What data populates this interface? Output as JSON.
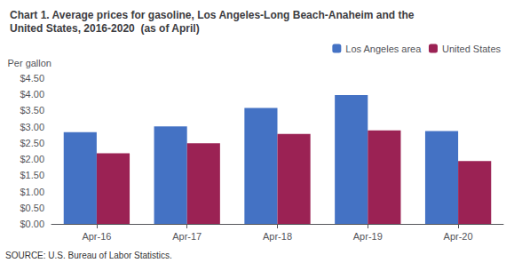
{
  "chart_data": {
    "type": "bar",
    "title": "Chart 1. Average prices for gasoline, Los Angeles-Long Beach-Anaheim and the\nUnited States, 2016-2020  (as of April)",
    "ylabel": "Per gallon",
    "annotation": "SOURCE: U.S. Bureau of Labor Statistics.",
    "categories": [
      "Apr-16",
      "Apr-17",
      "Apr-18",
      "Apr-19",
      "Apr-20"
    ],
    "series": [
      {
        "name": "Los Angeles area",
        "color": "#4472C4",
        "values": [
          2.83,
          3.01,
          3.58,
          3.98,
          2.87
        ]
      },
      {
        "name": "United States",
        "color": "#9B2254",
        "values": [
          2.18,
          2.49,
          2.78,
          2.89,
          1.94
        ]
      }
    ],
    "ylim": [
      0,
      4.5
    ],
    "yticks": [
      {
        "value": 0.0,
        "label": "$0.00"
      },
      {
        "value": 0.5,
        "label": "$0.50"
      },
      {
        "value": 1.0,
        "label": "$1.00"
      },
      {
        "value": 1.5,
        "label": "$1.50"
      },
      {
        "value": 2.0,
        "label": "$2.00"
      },
      {
        "value": 2.5,
        "label": "$2.50"
      },
      {
        "value": 3.0,
        "label": "$3.00"
      },
      {
        "value": 3.5,
        "label": "$3.50"
      },
      {
        "value": 4.0,
        "label": "$4.00"
      },
      {
        "value": 4.5,
        "label": "$4.50"
      }
    ],
    "grid": false,
    "legend": "upper right"
  }
}
